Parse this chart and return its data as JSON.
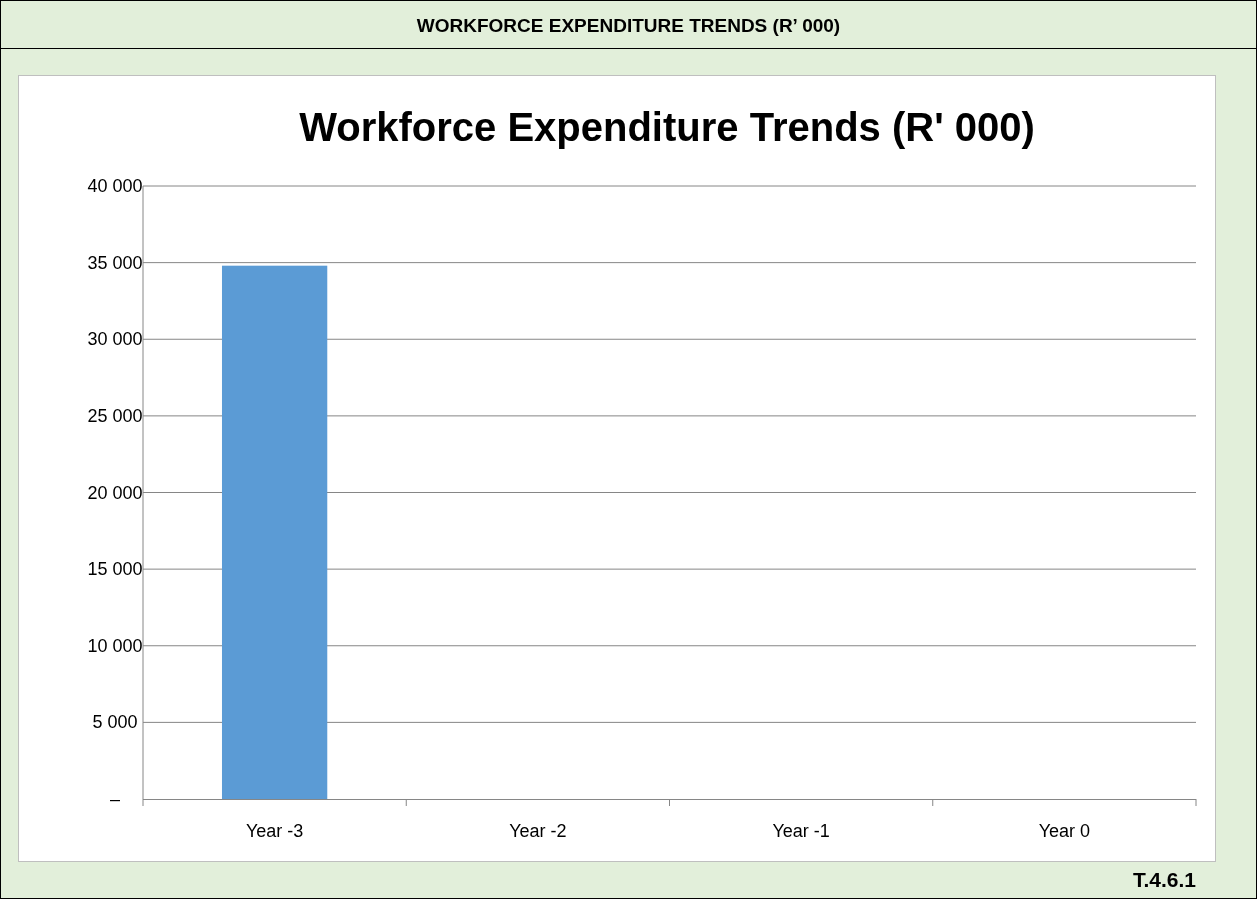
{
  "chart_data": {
    "type": "bar",
    "title": "Workforce Expenditure Trends (R' 000)",
    "annotations": [
      "WORKFORCE EXPENDITURE TRENDS (R’ 000)",
      "T.4.6.1"
    ],
    "categories": [
      "Year -3",
      "Year -2",
      "Year -1",
      "Year 0"
    ],
    "values": [
      34800,
      0,
      0,
      0
    ],
    "color": "#5b9bd5",
    "ylim": [
      0,
      40000
    ],
    "yticks": [
      {
        "value": 0,
        "label": "–"
      },
      {
        "value": 5000,
        "label": "5 000"
      },
      {
        "value": 10000,
        "label": "10 000"
      },
      {
        "value": 15000,
        "label": "15 000"
      },
      {
        "value": 20000,
        "label": "20 000"
      },
      {
        "value": 25000,
        "label": "25 000"
      },
      {
        "value": 30000,
        "label": "30 000"
      },
      {
        "value": 35000,
        "label": "35 000"
      },
      {
        "value": 40000,
        "label": "40 000"
      }
    ],
    "grid": "y"
  }
}
